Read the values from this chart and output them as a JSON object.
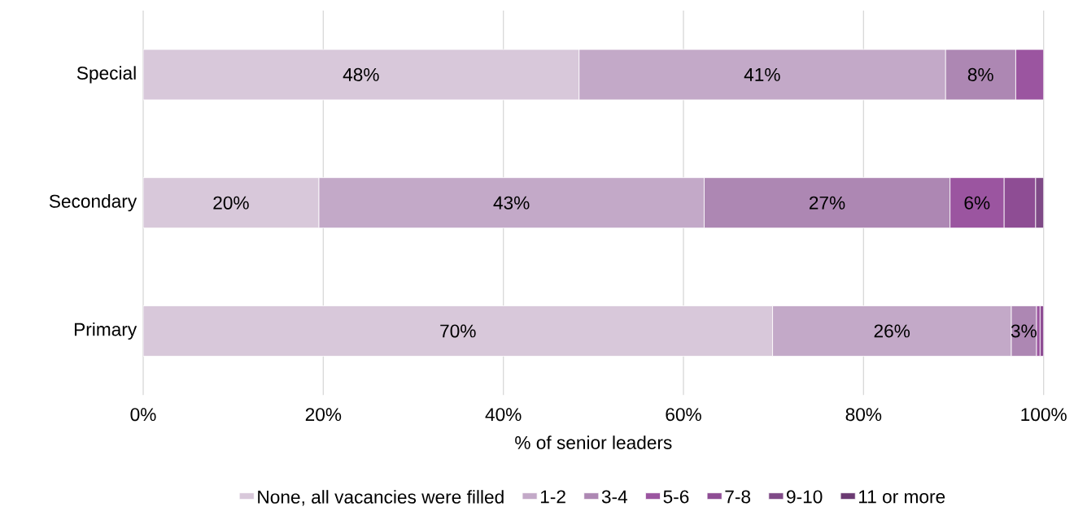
{
  "chart_data": {
    "type": "bar",
    "orientation": "horizontal",
    "stacked": true,
    "xlabel": "% of senior leaders",
    "categories": [
      "Special",
      "Secondary",
      "Primary"
    ],
    "series": [
      {
        "name": "None, all vacancies were filled",
        "color": "#d8c8da",
        "values": [
          48.4,
          19.5,
          69.9
        ],
        "value_labels": [
          "48%",
          "20%",
          "70%"
        ]
      },
      {
        "name": "1-2",
        "color": "#c3a9c8",
        "values": [
          40.7,
          42.8,
          26.5
        ],
        "value_labels": [
          "41%",
          "43%",
          "26%"
        ]
      },
      {
        "name": "3-4",
        "color": "#ad87b3",
        "values": [
          7.8,
          27.3,
          2.8
        ],
        "value_labels": [
          "8%",
          "27%",
          "3%"
        ]
      },
      {
        "name": "5-6",
        "color": "#9b55a0",
        "values": [
          3.1,
          6.0,
          0.4
        ],
        "value_labels": [
          null,
          "6%",
          null
        ]
      },
      {
        "name": "7-8",
        "color": "#8e4d94",
        "values": [
          0,
          3.5,
          0.4
        ],
        "value_labels": [
          null,
          null,
          null
        ]
      },
      {
        "name": "9-10",
        "color": "#7f4a87",
        "values": [
          0,
          0.9,
          0.2
        ],
        "value_labels": [
          null,
          null,
          null
        ]
      },
      {
        "name": "11 or more",
        "color": "#6b3a72",
        "values": [
          0,
          0,
          0
        ],
        "value_labels": [
          null,
          null,
          null
        ]
      }
    ],
    "xlim": [
      0,
      100
    ],
    "xticks": [
      {
        "value": 0,
        "label": "0%"
      },
      {
        "value": 20,
        "label": "20%"
      },
      {
        "value": 40,
        "label": "40%"
      },
      {
        "value": 60,
        "label": "60%"
      },
      {
        "value": 80,
        "label": "80%"
      },
      {
        "value": 100,
        "label": "100%"
      }
    ],
    "grid": "x",
    "legend": "bottom"
  }
}
